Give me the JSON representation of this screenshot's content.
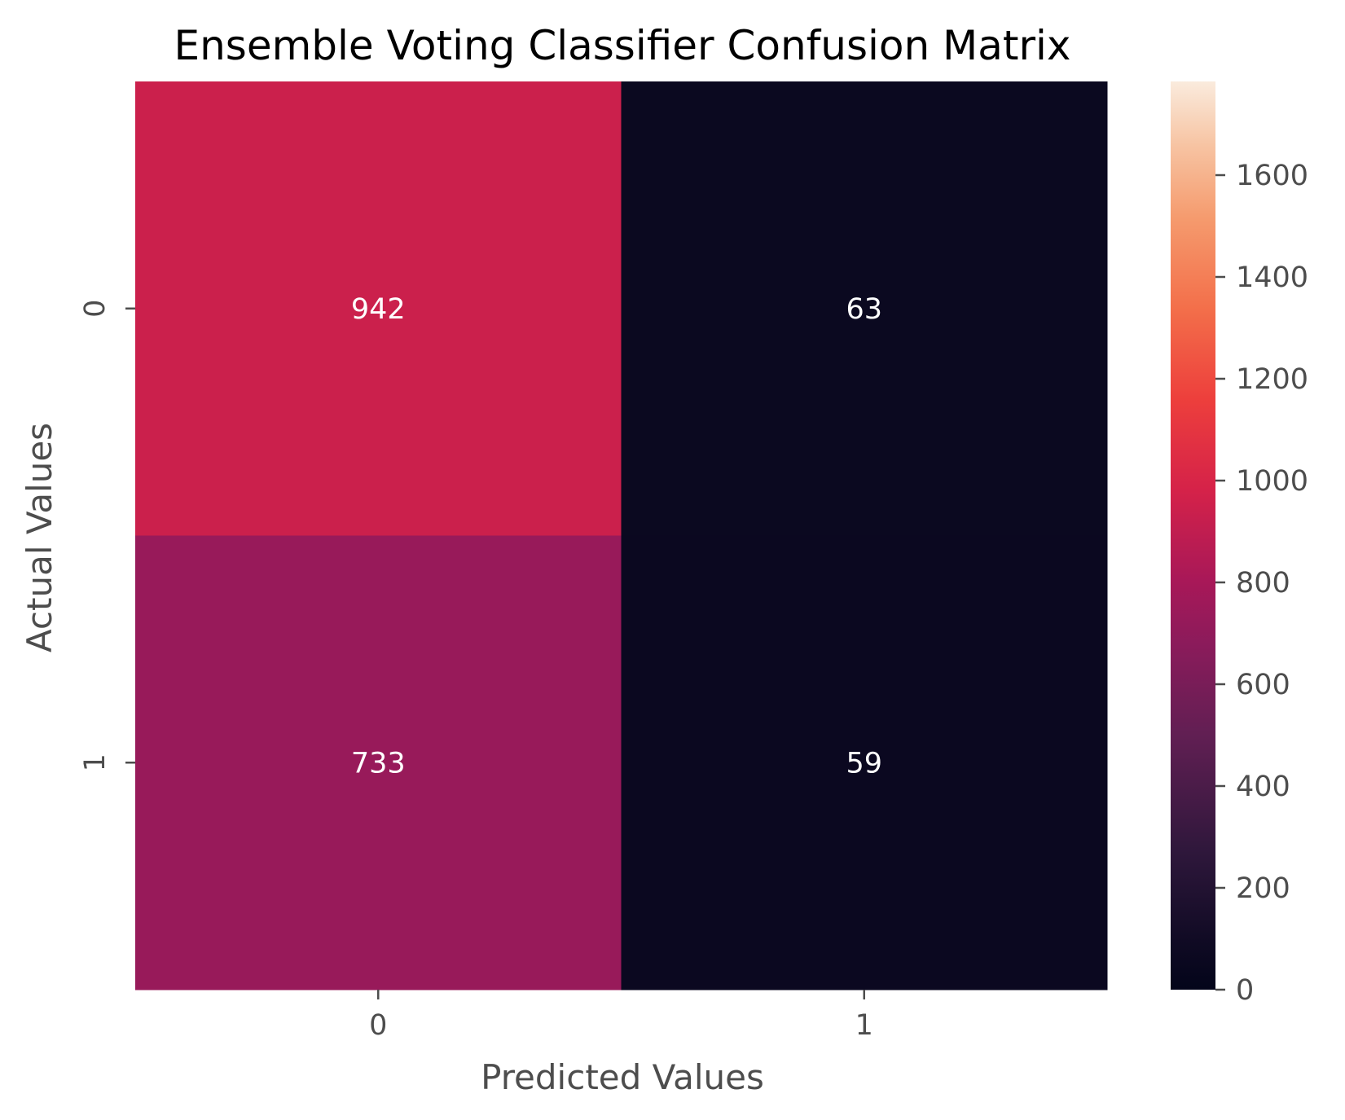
{
  "chart_data": {
    "type": "heatmap",
    "title": "Ensemble Voting Classifier Confusion Matrix",
    "xlabel": "Predicted Values",
    "ylabel": "Actual Values",
    "x_categories": [
      "0",
      "1"
    ],
    "y_categories": [
      "0",
      "1"
    ],
    "values": [
      [
        942,
        63
      ],
      [
        733,
        59
      ]
    ],
    "colorbar": {
      "min": 0,
      "max": 1784,
      "ticks": [
        0,
        200,
        400,
        600,
        800,
        1000,
        1200,
        1400,
        1600
      ],
      "colormap": "rocket"
    },
    "annotation_color": "#ffffff",
    "grid": false
  }
}
